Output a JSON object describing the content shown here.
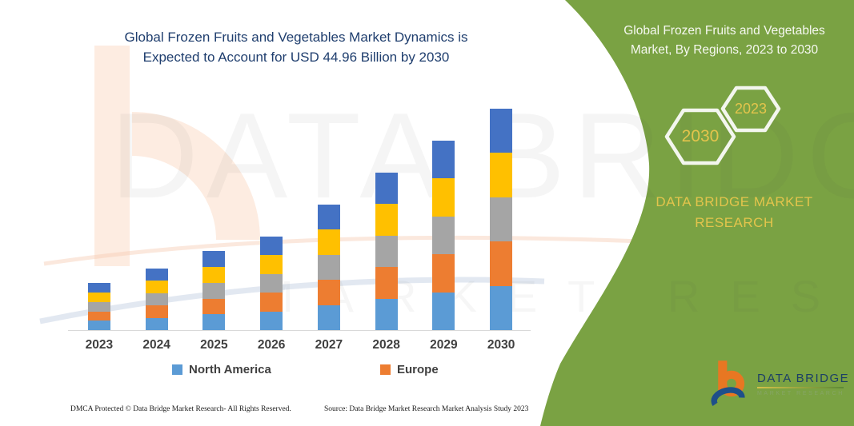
{
  "chart": {
    "title_line1": "Global Frozen Fruits and Vegetables Market Dynamics is",
    "title_line2": "Expected to Account for USD 44.96 Billion by 2030",
    "legend": [
      {
        "label": "North America",
        "color": "#5b9bd5"
      },
      {
        "label": "Europe",
        "color": "#ed7d31"
      }
    ],
    "footer_left": "DMCA Protected © Data Bridge Market Research-  All Rights Reserved.",
    "footer_right": "Source: Data Bridge Market Research  Market Analysis Study 2023"
  },
  "chart_data": {
    "type": "bar",
    "stacked": true,
    "categories": [
      "2023",
      "2024",
      "2025",
      "2026",
      "2027",
      "2028",
      "2029",
      "2030"
    ],
    "series": [
      {
        "name": "North America",
        "color": "#5b9bd5",
        "values": [
          1.9,
          2.5,
          3.2,
          3.8,
          5.1,
          6.4,
          7.7,
          9.0
        ]
      },
      {
        "name": "Europe",
        "color": "#ed7d31",
        "values": [
          1.9,
          2.5,
          3.2,
          3.8,
          5.1,
          6.4,
          7.7,
          9.0
        ]
      },
      {
        "name": "",
        "color": "#a5a5a5",
        "values": [
          1.9,
          2.5,
          3.2,
          3.8,
          5.1,
          6.4,
          7.7,
          9.0
        ]
      },
      {
        "name": "",
        "color": "#ffc000",
        "values": [
          1.9,
          2.5,
          3.2,
          3.8,
          5.1,
          6.4,
          7.7,
          9.0
        ]
      },
      {
        "name": "",
        "color": "#4472c4",
        "values": [
          1.9,
          2.5,
          3.2,
          3.8,
          5.1,
          6.4,
          7.7,
          9.0
        ]
      }
    ],
    "totals": [
      9.5,
      12.5,
      16,
      19,
      25.5,
      32,
      38.5,
      45
    ],
    "unit": "USD billion (estimated; chart has no value axis, 2030 stated as 44.96)",
    "title": "Global Frozen Fruits and Vegetables Market Dynamics is Expected to Account for USD 44.96 Billion by 2030",
    "xlabel": "",
    "ylabel": "",
    "legend_position": "bottom",
    "grid": false
  },
  "panel": {
    "bg": "#7aa243",
    "title_line1": "Global Frozen Fruits and Vegetables",
    "title_line2": "Market, By Regions, 2023 to 2030",
    "hex_large_year": "2030",
    "hex_small_year": "2023",
    "brand_line1": "DATA BRIDGE MARKET",
    "brand_line2": "RESEARCH",
    "accent_yellow": "#e3c44c"
  },
  "logo": {
    "name": "DATA BRIDGE",
    "sub": "MARKET RESEARCH"
  },
  "watermark": {
    "text1": "DATA BRIDGE",
    "text2": "MARKET RESEARCH"
  }
}
